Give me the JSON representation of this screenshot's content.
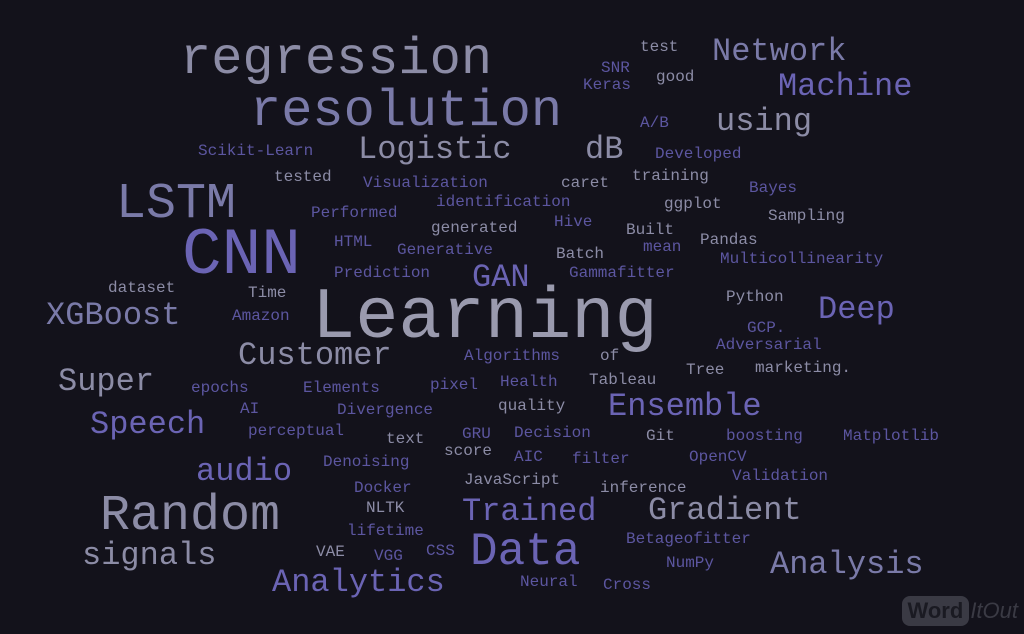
{
  "words": [
    {
      "text": "regression",
      "cls": "c3"
    },
    {
      "text": "resolution",
      "cls": "c1"
    },
    {
      "text": "Learning",
      "cls": "c5"
    },
    {
      "text": "CNN",
      "cls": "c2"
    },
    {
      "text": "LSTM",
      "cls": "c1"
    },
    {
      "text": "Random",
      "cls": "c3"
    },
    {
      "text": "Data",
      "cls": "c2"
    },
    {
      "text": "Network",
      "cls": "c1"
    },
    {
      "text": "Machine",
      "cls": "c2"
    },
    {
      "text": "using",
      "cls": "c3"
    },
    {
      "text": "Logistic",
      "cls": "c3"
    },
    {
      "text": "dB",
      "cls": "c3"
    },
    {
      "text": "Customer",
      "cls": "c3"
    },
    {
      "text": "Super",
      "cls": "c3"
    },
    {
      "text": "Speech",
      "cls": "c2"
    },
    {
      "text": "XGBoost",
      "cls": "c1"
    },
    {
      "text": "Ensemble",
      "cls": "c2"
    },
    {
      "text": "Deep",
      "cls": "c2"
    },
    {
      "text": "Gradient",
      "cls": "c3"
    },
    {
      "text": "Trained",
      "cls": "c2"
    },
    {
      "text": "Analysis",
      "cls": "c1"
    },
    {
      "text": "Analytics",
      "cls": "c2"
    },
    {
      "text": "signals",
      "cls": "c3"
    },
    {
      "text": "audio",
      "cls": "c2"
    },
    {
      "text": "GAN",
      "cls": "c2"
    },
    {
      "text": "test",
      "cls": "c3"
    },
    {
      "text": "SNR",
      "cls": "c4"
    },
    {
      "text": "good",
      "cls": "c3"
    },
    {
      "text": "Keras",
      "cls": "c4"
    },
    {
      "text": "A/B",
      "cls": "c4"
    },
    {
      "text": "Scikit-Learn",
      "cls": "c4"
    },
    {
      "text": "Developed",
      "cls": "c4"
    },
    {
      "text": "tested",
      "cls": "c3"
    },
    {
      "text": "Visualization",
      "cls": "c4"
    },
    {
      "text": "caret",
      "cls": "c3"
    },
    {
      "text": "training",
      "cls": "c3"
    },
    {
      "text": "Bayes",
      "cls": "c4"
    },
    {
      "text": "Performed",
      "cls": "c4"
    },
    {
      "text": "identification",
      "cls": "c4"
    },
    {
      "text": "ggplot",
      "cls": "c3"
    },
    {
      "text": "generated",
      "cls": "c3"
    },
    {
      "text": "Hive",
      "cls": "c4"
    },
    {
      "text": "Built",
      "cls": "c3"
    },
    {
      "text": "Sampling",
      "cls": "c3"
    },
    {
      "text": "HTML",
      "cls": "c4"
    },
    {
      "text": "Generative",
      "cls": "c4"
    },
    {
      "text": "Batch",
      "cls": "c3"
    },
    {
      "text": "mean",
      "cls": "c4"
    },
    {
      "text": "Pandas",
      "cls": "c3"
    },
    {
      "text": "Multicollinearity",
      "cls": "c4"
    },
    {
      "text": "Prediction",
      "cls": "c4"
    },
    {
      "text": "Gammafitter",
      "cls": "c4"
    },
    {
      "text": "dataset",
      "cls": "c3"
    },
    {
      "text": "Time",
      "cls": "c3"
    },
    {
      "text": "Python",
      "cls": "c3"
    },
    {
      "text": "Amazon",
      "cls": "c4"
    },
    {
      "text": "GCP.",
      "cls": "c4"
    },
    {
      "text": "Adversarial",
      "cls": "c4"
    },
    {
      "text": "Algorithms",
      "cls": "c4"
    },
    {
      "text": "of",
      "cls": "c3"
    },
    {
      "text": "Tree",
      "cls": "c3"
    },
    {
      "text": "marketing.",
      "cls": "c3"
    },
    {
      "text": "epochs",
      "cls": "c4"
    },
    {
      "text": "Elements",
      "cls": "c4"
    },
    {
      "text": "pixel",
      "cls": "c4"
    },
    {
      "text": "Health",
      "cls": "c4"
    },
    {
      "text": "Tableau",
      "cls": "c3"
    },
    {
      "text": "AI",
      "cls": "c4"
    },
    {
      "text": "Divergence",
      "cls": "c4"
    },
    {
      "text": "quality",
      "cls": "c3"
    },
    {
      "text": "perceptual",
      "cls": "c4"
    },
    {
      "text": "text",
      "cls": "c3"
    },
    {
      "text": "GRU",
      "cls": "c4"
    },
    {
      "text": "Decision",
      "cls": "c4"
    },
    {
      "text": "Git",
      "cls": "c3"
    },
    {
      "text": "boosting",
      "cls": "c4"
    },
    {
      "text": "Matplotlib",
      "cls": "c4"
    },
    {
      "text": "Denoising",
      "cls": "c4"
    },
    {
      "text": "score",
      "cls": "c3"
    },
    {
      "text": "AIC",
      "cls": "c4"
    },
    {
      "text": "filter",
      "cls": "c4"
    },
    {
      "text": "OpenCV",
      "cls": "c4"
    },
    {
      "text": "JavaScript",
      "cls": "c3"
    },
    {
      "text": "Validation",
      "cls": "c4"
    },
    {
      "text": "Docker",
      "cls": "c4"
    },
    {
      "text": "inference",
      "cls": "c3"
    },
    {
      "text": "NLTK",
      "cls": "c3"
    },
    {
      "text": "lifetime",
      "cls": "c4"
    },
    {
      "text": "VAE",
      "cls": "c3"
    },
    {
      "text": "VGG",
      "cls": "c4"
    },
    {
      "text": "CSS",
      "cls": "c4"
    },
    {
      "text": "Betageofitter",
      "cls": "c4"
    },
    {
      "text": "NumPy",
      "cls": "c4"
    },
    {
      "text": "Neural",
      "cls": "c4"
    },
    {
      "text": "Cross",
      "cls": "c4"
    }
  ],
  "logo": {
    "text_box": "Word",
    "text_tail": "ItOut"
  }
}
